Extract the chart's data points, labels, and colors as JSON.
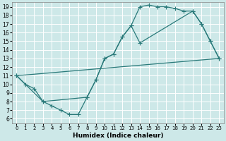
{
  "bg_color": "#cde8e8",
  "grid_color": "#ffffff",
  "line_color": "#2a7a7a",
  "xlabel": "Humidex (Indice chaleur)",
  "markersize": 2.5,
  "linewidth": 0.9,
  "xlim": [
    -0.5,
    23.5
  ],
  "ylim": [
    5.5,
    19.5
  ],
  "xticks": [
    0,
    1,
    2,
    3,
    4,
    5,
    6,
    7,
    8,
    9,
    10,
    11,
    12,
    13,
    14,
    15,
    16,
    17,
    18,
    19,
    20,
    21,
    22,
    23
  ],
  "yticks": [
    6,
    7,
    8,
    9,
    10,
    11,
    12,
    13,
    14,
    15,
    16,
    17,
    18,
    19
  ],
  "curve1_x": [
    0,
    1,
    2,
    3,
    4,
    5,
    6,
    7,
    8,
    9,
    10,
    11,
    12,
    13,
    14,
    15,
    16,
    17,
    18,
    19,
    20,
    21,
    22,
    23
  ],
  "curve1_y": [
    11,
    10,
    9.5,
    8.0,
    7.5,
    7.0,
    6.5,
    6.5,
    8.5,
    10.5,
    13.0,
    13.5,
    15.5,
    16.8,
    19.0,
    19.2,
    19.0,
    19.0,
    18.8,
    18.5,
    18.5,
    17.0,
    15.0,
    13.0
  ],
  "curve2_x": [
    0,
    3,
    8,
    9,
    10,
    11,
    12,
    13,
    14,
    20,
    21,
    22,
    23
  ],
  "curve2_y": [
    11,
    8.0,
    8.5,
    10.5,
    13.0,
    13.5,
    15.5,
    16.8,
    14.8,
    18.5,
    17.0,
    15.0,
    13.0
  ],
  "curve3_x": [
    0,
    23
  ],
  "curve3_y": [
    11,
    13.0
  ]
}
